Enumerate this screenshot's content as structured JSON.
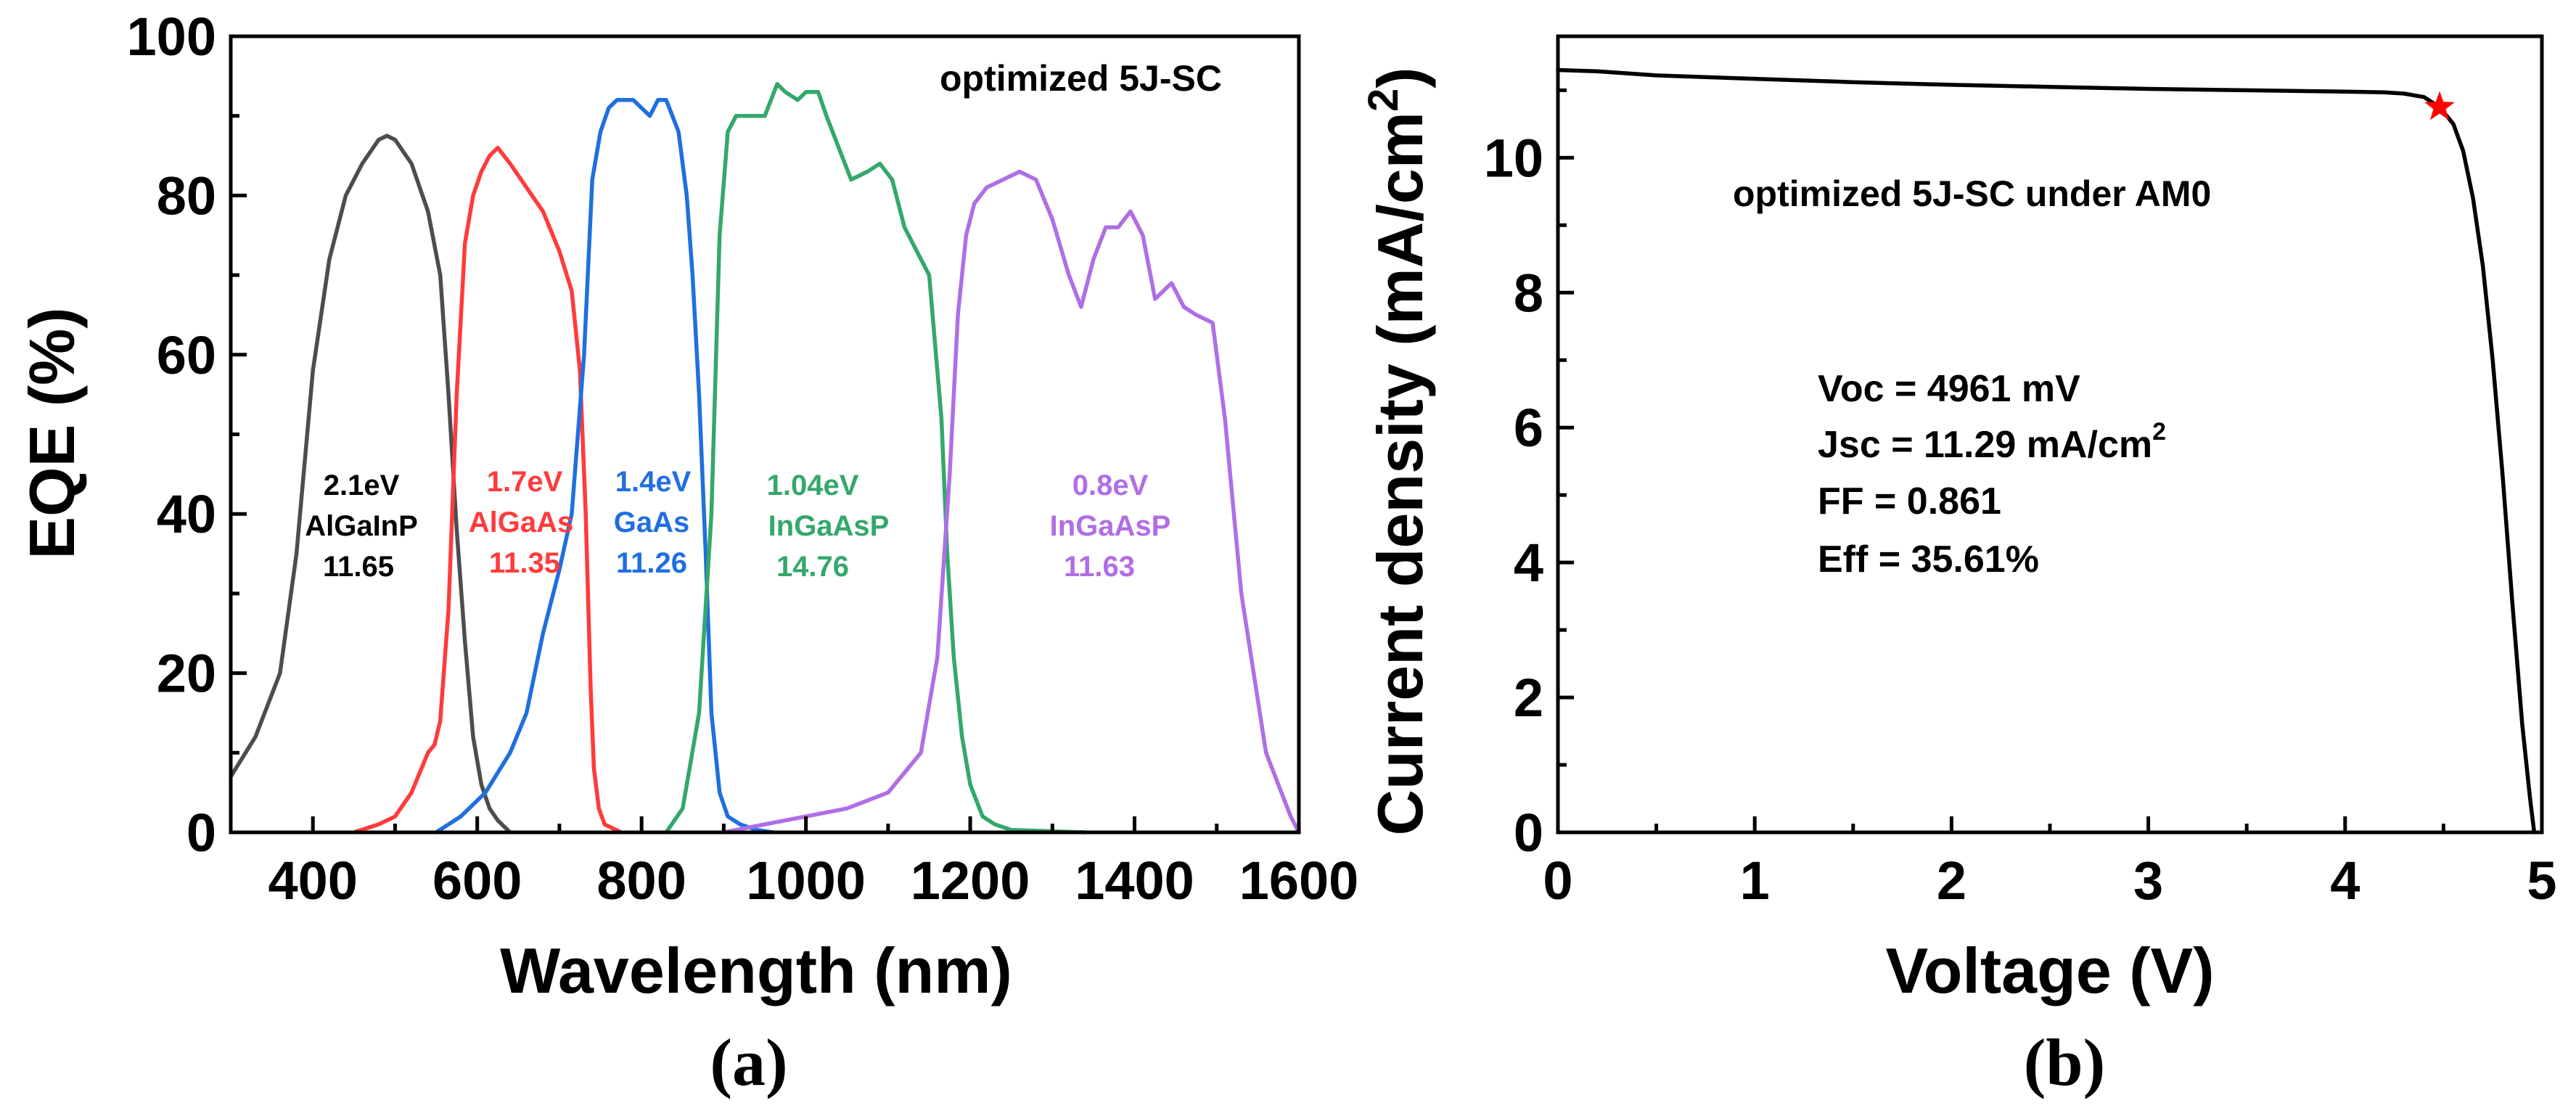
{
  "chart_data": [
    {
      "type": "line",
      "panel_label": "(a)",
      "annotation": "optimized 5J-SC",
      "xlabel": "Wavelength (nm)",
      "ylabel": "EQE (%)",
      "xlim": [
        300,
        1600
      ],
      "ylim": [
        0,
        100
      ],
      "xticks": [
        400,
        600,
        800,
        1000,
        1200,
        1400,
        1600
      ],
      "yticks": [
        0,
        20,
        40,
        60,
        80,
        100
      ],
      "series": [
        {
          "name": "AlGaInP",
          "color": "#4d4d4d",
          "label_lines": [
            "2.1eV",
            "AlGaInP",
            "11.65"
          ],
          "x": [
            300,
            330,
            360,
            380,
            400,
            420,
            440,
            460,
            480,
            490,
            500,
            520,
            540,
            555,
            565,
            575,
            585,
            595,
            605,
            615,
            625,
            640
          ],
          "y": [
            7,
            12,
            20,
            35,
            58,
            72,
            80,
            84,
            87,
            87.5,
            87,
            84,
            78,
            70,
            55,
            38,
            24,
            12,
            6,
            3,
            1.5,
            0
          ]
        },
        {
          "name": "AlGaAs",
          "color": "#ff3b3b",
          "label_lines": [
            "1.7eV",
            "AlGaAs",
            "11.35"
          ],
          "x": [
            450,
            480,
            500,
            520,
            540,
            548,
            555,
            565,
            575,
            585,
            595,
            605,
            615,
            625,
            640,
            660,
            680,
            700,
            715,
            725,
            732,
            738,
            742,
            748,
            755,
            765,
            775
          ],
          "y": [
            0,
            1,
            2,
            5,
            10,
            11,
            14,
            28,
            55,
            74,
            80,
            83,
            85,
            86,
            84,
            81,
            78,
            73,
            68,
            58,
            40,
            18,
            8,
            3,
            1,
            0.5,
            0
          ]
        },
        {
          "name": "GaAs",
          "color": "#1f6fe0",
          "label_lines": [
            "1.4eV",
            "GaAs",
            "11.26"
          ],
          "x": [
            550,
            580,
            610,
            640,
            660,
            680,
            700,
            715,
            730,
            740,
            750,
            760,
            770,
            790,
            810,
            820,
            830,
            845,
            855,
            862,
            870,
            878,
            885,
            895,
            905,
            920,
            940,
            960
          ],
          "y": [
            0,
            2,
            5,
            10,
            15,
            25,
            33,
            40,
            60,
            82,
            88,
            91,
            92,
            92,
            90,
            92,
            92,
            88,
            80,
            70,
            55,
            35,
            15,
            5,
            2,
            1,
            0.3,
            0
          ]
        },
        {
          "name": "InGaAsP",
          "color": "#33a86a",
          "label_lines": [
            "1.04eV",
            "InGaAsP",
            "14.76"
          ],
          "x": [
            830,
            850,
            870,
            885,
            895,
            905,
            915,
            930,
            950,
            965,
            975,
            990,
            1000,
            1015,
            1025,
            1040,
            1055,
            1075,
            1090,
            1105,
            1120,
            1135,
            1150,
            1165,
            1172,
            1180,
            1190,
            1200,
            1215,
            1230,
            1250,
            1340
          ],
          "y": [
            0,
            3,
            15,
            40,
            75,
            88,
            90,
            90,
            90,
            94,
            93,
            92,
            93,
            93,
            90,
            86,
            82,
            83,
            84,
            82,
            76,
            73,
            70,
            52,
            35,
            22,
            12,
            6,
            2,
            1,
            0.3,
            0
          ]
        },
        {
          "name": "InGaAsP",
          "color": "#b06ee6",
          "label_lines": [
            "0.8eV",
            "InGaAsP",
            "11.63"
          ],
          "x": [
            900,
            950,
            1000,
            1050,
            1100,
            1140,
            1160,
            1175,
            1185,
            1195,
            1205,
            1220,
            1240,
            1260,
            1280,
            1300,
            1320,
            1335,
            1350,
            1365,
            1380,
            1395,
            1410,
            1425,
            1445,
            1460,
            1475,
            1495,
            1510,
            1530,
            1560,
            1590,
            1600
          ],
          "y": [
            0,
            1,
            2,
            3,
            5,
            10,
            22,
            45,
            65,
            75,
            79,
            81,
            82,
            83,
            82,
            77,
            70,
            66,
            72,
            76,
            76,
            78,
            75,
            67,
            69,
            66,
            65,
            64,
            52,
            30,
            10,
            2,
            0
          ]
        }
      ]
    },
    {
      "type": "line",
      "panel_label": "(b)",
      "annotation": "optimized 5J-SC under AM0",
      "xlabel": "Voltage (V)",
      "ylabel": "Current density (mA/cm",
      "ylabel_superscript": "2",
      "ylabel_close": ")",
      "xlim": [
        0,
        5
      ],
      "ylim": [
        0,
        11.8
      ],
      "xticks": [
        0,
        1,
        2,
        3,
        4,
        5
      ],
      "yticks": [
        0,
        2,
        4,
        6,
        8,
        10
      ],
      "stats": {
        "voc": "Voc = 4961 mV",
        "jsc": "Jsc = 11.29 mA/cm",
        "jsc_sup": "2",
        "ff": "FF = 0.861",
        "eff": "Eff = 35.61%"
      },
      "series": [
        {
          "name": "J-V",
          "color": "#000000",
          "x": [
            0,
            0.2,
            0.5,
            1.0,
            1.5,
            2.0,
            2.5,
            3.0,
            3.5,
            4.0,
            4.2,
            4.3,
            4.4,
            4.48,
            4.55,
            4.6,
            4.65,
            4.7,
            4.75,
            4.8,
            4.85,
            4.9,
            4.94,
            4.961
          ],
          "y": [
            11.3,
            11.28,
            11.22,
            11.17,
            11.12,
            11.08,
            11.05,
            11.02,
            11.0,
            10.98,
            10.97,
            10.95,
            10.9,
            10.75,
            10.5,
            10.1,
            9.4,
            8.4,
            7.0,
            5.3,
            3.4,
            1.6,
            0.5,
            0
          ]
        }
      ],
      "mpp_marker": {
        "x": 4.48,
        "y": 10.75,
        "color": "#ff0000",
        "shape": "star"
      }
    }
  ]
}
